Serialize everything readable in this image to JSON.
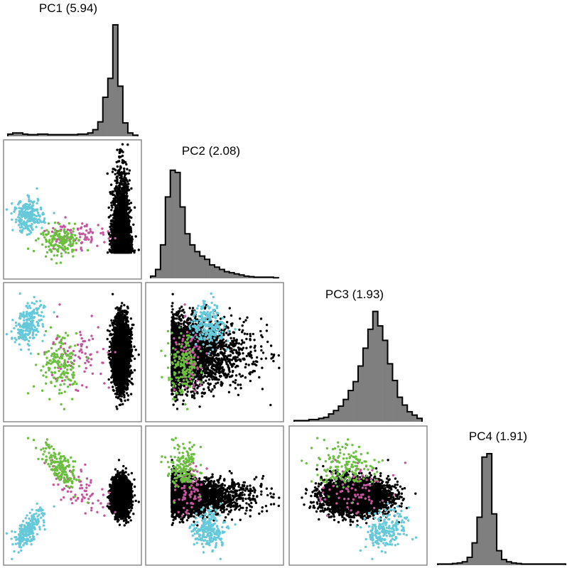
{
  "chart_data": {
    "type": "scatter",
    "layout": "pairs-matrix",
    "variables": [
      {
        "name": "PC1",
        "variance": "(5.94)",
        "hist": [
          0.02,
          0.03,
          0.03,
          0.02,
          0.015,
          0.015,
          0.02,
          0.02,
          0.015,
          0.015,
          0.015,
          0.015,
          0.015,
          0.015,
          0.02,
          0.02,
          0.03,
          0.06,
          0.13,
          0.35,
          0.52,
          1.0,
          0.45,
          0.12,
          0.03,
          0.01
        ]
      },
      {
        "name": "PC2",
        "variance": "(2.08)",
        "hist": [
          0.02,
          0.08,
          0.3,
          0.73,
          0.97,
          0.95,
          0.64,
          0.4,
          0.3,
          0.24,
          0.2,
          0.17,
          0.12,
          0.1,
          0.08,
          0.06,
          0.05,
          0.04,
          0.03,
          0.02,
          0.015,
          0.01,
          0.01,
          0.01,
          0.01,
          0.005
        ]
      },
      {
        "name": "PC3",
        "variance": "(1.93)",
        "hist": [
          0.01,
          0.01,
          0.01,
          0.02,
          0.02,
          0.03,
          0.04,
          0.07,
          0.1,
          0.14,
          0.2,
          0.28,
          0.36,
          0.5,
          0.66,
          0.83,
          0.99,
          0.86,
          0.73,
          0.52,
          0.37,
          0.22,
          0.15,
          0.09,
          0.06,
          0.03
        ]
      },
      {
        "name": "PC4",
        "variance": "(1.91)",
        "hist": [
          0.01,
          0.01,
          0.01,
          0.015,
          0.02,
          0.03,
          0.07,
          0.2,
          0.43,
          0.97,
          1.0,
          0.46,
          0.13,
          0.05,
          0.03,
          0.02,
          0.015,
          0.01,
          0.01,
          0.01,
          0.01,
          0.01,
          0.01,
          0.01,
          0.01,
          0.01
        ]
      }
    ],
    "groups": [
      {
        "color": "#000000",
        "count": 3200,
        "mean": [
          1.6,
          -0.3,
          -0.1,
          0.0
        ],
        "sd": [
          0.18,
          1.0,
          0.85,
          0.45
        ],
        "skew_pc2": 0.9
      },
      {
        "color": "#65c9da",
        "count": 220,
        "mean": [
          -2.5,
          0.6,
          1.4,
          -1.8
        ],
        "sd": [
          0.32,
          0.45,
          0.55,
          0.5
        ],
        "corr13": 0.4,
        "corr14": 0.7
      },
      {
        "color": "#6bbf3e",
        "count": 160,
        "mean": [
          -1.1,
          -0.8,
          -0.6,
          1.6
        ],
        "sd": [
          0.45,
          0.4,
          0.75,
          0.6
        ],
        "corr14": -0.75
      },
      {
        "color": "#c5559e",
        "count": 80,
        "mean": [
          -0.4,
          -0.5,
          -0.4,
          0.6
        ],
        "sd": [
          0.7,
          0.45,
          0.85,
          0.75
        ],
        "corr14": -0.6
      }
    ],
    "axis_ranges": [
      [
        -3.4,
        2.3
      ],
      [
        -2.6,
        4.5
      ],
      [
        -3.3,
        3.3
      ],
      [
        -3.4,
        3.5
      ]
    ],
    "grid": false,
    "legend": "none"
  }
}
